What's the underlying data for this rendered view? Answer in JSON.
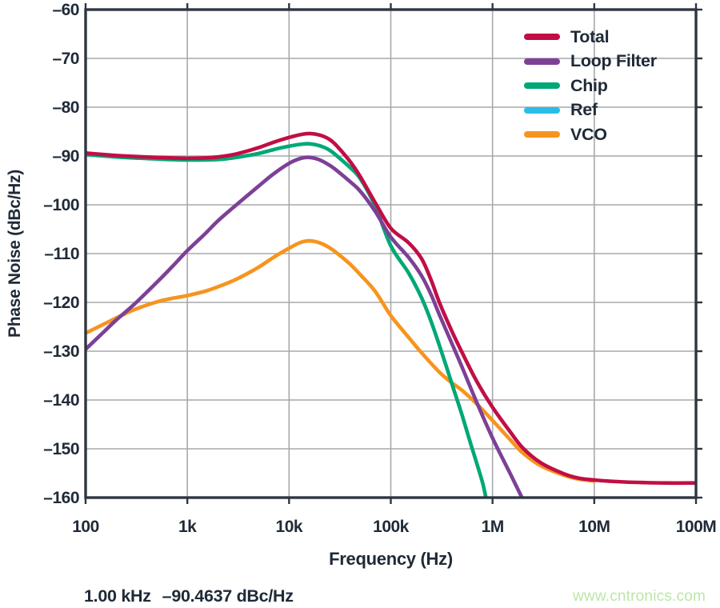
{
  "page": {
    "background": "#FFFFFF"
  },
  "annotation": {
    "freq": "1.00 kHz",
    "value": "–90.4637 dBc/Hz"
  },
  "watermark": {
    "text": "www.cntronics.com",
    "color": "#BCE6A6"
  },
  "chart_data": {
    "type": "line",
    "title": "",
    "xlabel": "Frequency (Hz)",
    "ylabel": "Phase Noise (dBc/Hz)",
    "x_scale": "log",
    "xlim": [
      100,
      100000000
    ],
    "ylim": [
      -160,
      -60
    ],
    "grid": true,
    "legend_position": "top-right",
    "colors": {
      "text": "#1F2A37",
      "grid": "#A7A9AC",
      "axis": "#2F3642",
      "watermark": "#BCE6A6"
    },
    "x_ticks": [
      {
        "value": 100,
        "label": "100"
      },
      {
        "value": 1000,
        "label": "1k"
      },
      {
        "value": 10000,
        "label": "10k"
      },
      {
        "value": 100000,
        "label": "100k"
      },
      {
        "value": 1000000,
        "label": "1M"
      },
      {
        "value": 10000000,
        "label": "10M"
      },
      {
        "value": 100000000,
        "label": "100M"
      }
    ],
    "y_ticks": [
      {
        "value": -60,
        "label": "–60"
      },
      {
        "value": -70,
        "label": "–70"
      },
      {
        "value": -80,
        "label": "–80"
      },
      {
        "value": -90,
        "label": "–90"
      },
      {
        "value": -100,
        "label": "–100"
      },
      {
        "value": -110,
        "label": "–110"
      },
      {
        "value": -120,
        "label": "–120"
      },
      {
        "value": -130,
        "label": "–130"
      },
      {
        "value": -140,
        "label": "–140"
      },
      {
        "value": -150,
        "label": "–150"
      },
      {
        "value": -160,
        "label": "–160"
      }
    ],
    "series": [
      {
        "name": "Total",
        "key": "total",
        "color": "#C10E45",
        "points": [
          [
            100,
            -89.4
          ],
          [
            150,
            -89.7
          ],
          [
            200,
            -89.9
          ],
          [
            300,
            -90.1
          ],
          [
            500,
            -90.3
          ],
          [
            700,
            -90.4
          ],
          [
            1000,
            -90.46
          ],
          [
            1500,
            -90.4
          ],
          [
            2000,
            -90.2
          ],
          [
            3000,
            -89.6
          ],
          [
            5000,
            -88.3
          ],
          [
            7000,
            -87.2
          ],
          [
            10000,
            -86.2
          ],
          [
            13000,
            -85.6
          ],
          [
            16000,
            -85.4
          ],
          [
            20000,
            -85.7
          ],
          [
            25000,
            -86.6
          ],
          [
            30000,
            -88.1
          ],
          [
            40000,
            -91.2
          ],
          [
            50000,
            -94.2
          ],
          [
            70000,
            -99.5
          ],
          [
            100000,
            -104.8
          ],
          [
            150000,
            -107.8
          ],
          [
            200000,
            -111.0
          ],
          [
            250000,
            -115.5
          ],
          [
            300000,
            -120.0
          ],
          [
            400000,
            -126.0
          ],
          [
            500000,
            -130.2
          ],
          [
            700000,
            -136.2
          ],
          [
            1000000,
            -141.5
          ],
          [
            1500000,
            -146.6
          ],
          [
            2000000,
            -149.9
          ],
          [
            3000000,
            -152.9
          ],
          [
            5000000,
            -155.1
          ],
          [
            7000000,
            -156.0
          ],
          [
            10000000,
            -156.4
          ],
          [
            20000000,
            -156.8
          ],
          [
            50000000,
            -157.0
          ],
          [
            100000000,
            -157.0
          ]
        ]
      },
      {
        "name": "Loop Filter",
        "key": "loop-filter",
        "color": "#7D4097",
        "points": [
          [
            100,
            -129.6
          ],
          [
            150,
            -126.1
          ],
          [
            200,
            -123.6
          ],
          [
            300,
            -120.4
          ],
          [
            500,
            -115.9
          ],
          [
            700,
            -112.8
          ],
          [
            1000,
            -109.4
          ],
          [
            1500,
            -105.9
          ],
          [
            2000,
            -103.3
          ],
          [
            3000,
            -100.1
          ],
          [
            5000,
            -96.2
          ],
          [
            7000,
            -93.7
          ],
          [
            10000,
            -91.5
          ],
          [
            13000,
            -90.5
          ],
          [
            16000,
            -90.3
          ],
          [
            20000,
            -90.8
          ],
          [
            25000,
            -91.9
          ],
          [
            30000,
            -93.1
          ],
          [
            40000,
            -95.3
          ],
          [
            50000,
            -97.2
          ],
          [
            70000,
            -101.3
          ],
          [
            100000,
            -106.6
          ],
          [
            150000,
            -110.8
          ],
          [
            200000,
            -114.5
          ],
          [
            250000,
            -118.5
          ],
          [
            300000,
            -122.5
          ],
          [
            400000,
            -128.5
          ],
          [
            500000,
            -133.2
          ],
          [
            700000,
            -140.5
          ],
          [
            1000000,
            -147.8
          ],
          [
            1500000,
            -155.2
          ],
          [
            2000000,
            -160.5
          ]
        ]
      },
      {
        "name": "Chip",
        "key": "chip",
        "color": "#00A876",
        "points": [
          [
            100,
            -89.7
          ],
          [
            200,
            -90.2
          ],
          [
            300,
            -90.4
          ],
          [
            500,
            -90.6
          ],
          [
            1000,
            -90.8
          ],
          [
            2000,
            -90.7
          ],
          [
            3000,
            -90.3
          ],
          [
            5000,
            -89.5
          ],
          [
            7000,
            -88.7
          ],
          [
            10000,
            -88.0
          ],
          [
            13000,
            -87.6
          ],
          [
            16000,
            -87.5
          ],
          [
            20000,
            -87.9
          ],
          [
            25000,
            -88.8
          ],
          [
            30000,
            -90.1
          ],
          [
            40000,
            -92.4
          ],
          [
            50000,
            -94.6
          ],
          [
            70000,
            -100.2
          ],
          [
            100000,
            -108.4
          ],
          [
            150000,
            -114.0
          ],
          [
            200000,
            -119.0
          ],
          [
            250000,
            -124.0
          ],
          [
            300000,
            -128.8
          ],
          [
            350000,
            -133.0
          ],
          [
            400000,
            -136.8
          ],
          [
            500000,
            -143.0
          ],
          [
            600000,
            -148.5
          ],
          [
            700000,
            -153.0
          ],
          [
            800000,
            -157.0
          ],
          [
            870000,
            -160.5
          ]
        ]
      },
      {
        "name": "Ref",
        "key": "ref",
        "color": "#29BDE9",
        "points": [],
        "note": "legend entry only — curve not visible in plot area of the screenshot"
      },
      {
        "name": "VCO",
        "key": "vco",
        "color": "#F7941E",
        "points": [
          [
            100,
            -126.3
          ],
          [
            150,
            -124.5
          ],
          [
            200,
            -123.2
          ],
          [
            300,
            -121.5
          ],
          [
            500,
            -119.9
          ],
          [
            700,
            -119.2
          ],
          [
            1000,
            -118.6
          ],
          [
            1500,
            -117.7
          ],
          [
            2000,
            -116.8
          ],
          [
            3000,
            -115.3
          ],
          [
            5000,
            -112.8
          ],
          [
            7000,
            -110.8
          ],
          [
            10000,
            -108.9
          ],
          [
            13000,
            -107.7
          ],
          [
            16000,
            -107.4
          ],
          [
            20000,
            -107.8
          ],
          [
            25000,
            -108.8
          ],
          [
            30000,
            -110.0
          ],
          [
            40000,
            -112.2
          ],
          [
            50000,
            -114.3
          ],
          [
            70000,
            -117.7
          ],
          [
            100000,
            -122.7
          ],
          [
            150000,
            -127.2
          ],
          [
            200000,
            -130.3
          ],
          [
            300000,
            -134.3
          ],
          [
            400000,
            -136.5
          ],
          [
            500000,
            -138.0
          ],
          [
            700000,
            -140.8
          ],
          [
            1000000,
            -144.2
          ],
          [
            1500000,
            -148.2
          ],
          [
            2000000,
            -150.9
          ],
          [
            3000000,
            -153.5
          ],
          [
            5000000,
            -155.4
          ],
          [
            7000000,
            -156.2
          ],
          [
            10000000,
            -156.6
          ]
        ]
      }
    ]
  }
}
